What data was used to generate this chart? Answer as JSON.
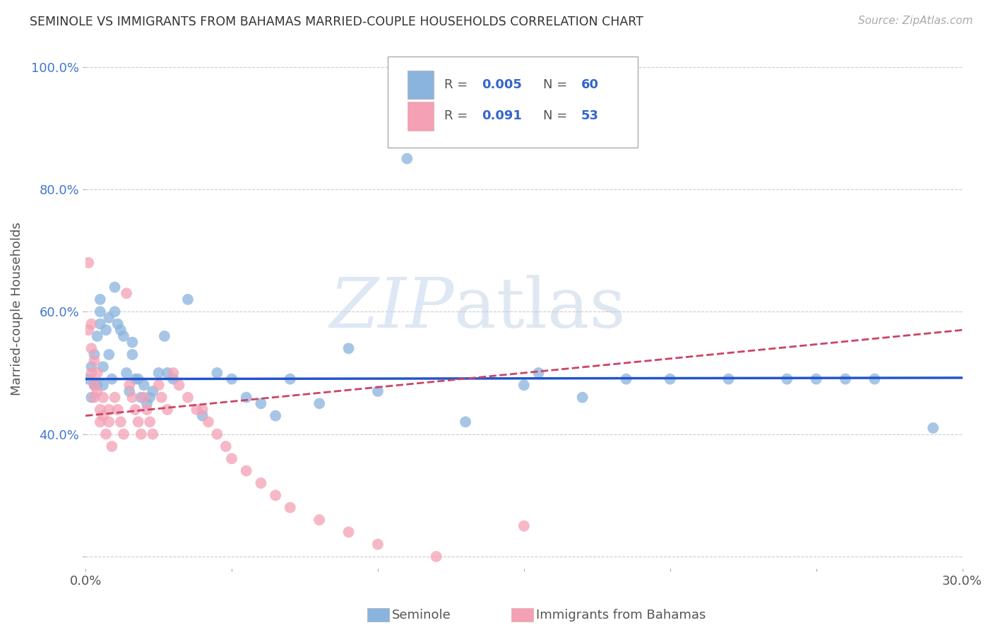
{
  "title": "SEMINOLE VS IMMIGRANTS FROM BAHAMAS MARRIED-COUPLE HOUSEHOLDS CORRELATION CHART",
  "source": "Source: ZipAtlas.com",
  "ylabel": "Married-couple Households",
  "xlabel": "",
  "xlim": [
    0.0,
    0.3
  ],
  "ylim": [
    0.18,
    1.03
  ],
  "xticks": [
    0.0,
    0.05,
    0.1,
    0.15,
    0.2,
    0.25,
    0.3
  ],
  "xticklabels": [
    "0.0%",
    "",
    "",
    "",
    "",
    "",
    "30.0%"
  ],
  "yticks": [
    0.2,
    0.4,
    0.6,
    0.8,
    1.0
  ],
  "yticklabels": [
    "",
    "40.0%",
    "60.0%",
    "80.0%",
    "100.0%"
  ],
  "grid_color": "#cccccc",
  "background_color": "#ffffff",
  "seminole_color": "#8ab4de",
  "bahamas_color": "#f4a0b5",
  "seminole_line_color": "#2255cc",
  "bahamas_line_color": "#cc4466",
  "label1": "Seminole",
  "label2": "Immigrants from Bahamas",
  "watermark_zip": "ZIP",
  "watermark_atlas": "atlas",
  "seminole_x": [
    0.001,
    0.002,
    0.002,
    0.003,
    0.003,
    0.004,
    0.004,
    0.005,
    0.005,
    0.005,
    0.006,
    0.006,
    0.007,
    0.008,
    0.008,
    0.009,
    0.01,
    0.01,
    0.011,
    0.012,
    0.013,
    0.014,
    0.015,
    0.016,
    0.016,
    0.017,
    0.018,
    0.019,
    0.02,
    0.021,
    0.022,
    0.023,
    0.025,
    0.027,
    0.028,
    0.03,
    0.035,
    0.04,
    0.045,
    0.05,
    0.055,
    0.06,
    0.065,
    0.07,
    0.08,
    0.09,
    0.1,
    0.11,
    0.13,
    0.15,
    0.155,
    0.17,
    0.185,
    0.2,
    0.22,
    0.24,
    0.25,
    0.26,
    0.27,
    0.29
  ],
  "seminole_y": [
    0.49,
    0.51,
    0.46,
    0.53,
    0.48,
    0.56,
    0.48,
    0.62,
    0.6,
    0.58,
    0.51,
    0.48,
    0.57,
    0.59,
    0.53,
    0.49,
    0.64,
    0.6,
    0.58,
    0.57,
    0.56,
    0.5,
    0.47,
    0.55,
    0.53,
    0.49,
    0.49,
    0.46,
    0.48,
    0.45,
    0.46,
    0.47,
    0.5,
    0.56,
    0.5,
    0.49,
    0.62,
    0.43,
    0.5,
    0.49,
    0.46,
    0.45,
    0.43,
    0.49,
    0.45,
    0.54,
    0.47,
    0.85,
    0.42,
    0.48,
    0.5,
    0.46,
    0.49,
    0.49,
    0.49,
    0.49,
    0.49,
    0.49,
    0.49,
    0.41
  ],
  "bahamas_x": [
    0.001,
    0.001,
    0.002,
    0.002,
    0.002,
    0.003,
    0.003,
    0.003,
    0.004,
    0.004,
    0.005,
    0.005,
    0.006,
    0.006,
    0.007,
    0.008,
    0.008,
    0.009,
    0.01,
    0.011,
    0.012,
    0.013,
    0.014,
    0.015,
    0.016,
    0.017,
    0.018,
    0.019,
    0.02,
    0.021,
    0.022,
    0.023,
    0.025,
    0.026,
    0.028,
    0.03,
    0.032,
    0.035,
    0.038,
    0.04,
    0.042,
    0.045,
    0.048,
    0.05,
    0.055,
    0.06,
    0.065,
    0.07,
    0.08,
    0.09,
    0.1,
    0.12,
    0.15
  ],
  "bahamas_y": [
    0.68,
    0.57,
    0.58,
    0.54,
    0.5,
    0.52,
    0.48,
    0.46,
    0.5,
    0.47,
    0.44,
    0.42,
    0.46,
    0.43,
    0.4,
    0.44,
    0.42,
    0.38,
    0.46,
    0.44,
    0.42,
    0.4,
    0.63,
    0.48,
    0.46,
    0.44,
    0.42,
    0.4,
    0.46,
    0.44,
    0.42,
    0.4,
    0.48,
    0.46,
    0.44,
    0.5,
    0.48,
    0.46,
    0.44,
    0.44,
    0.42,
    0.4,
    0.38,
    0.36,
    0.34,
    0.32,
    0.3,
    0.28,
    0.26,
    0.24,
    0.22,
    0.2,
    0.25
  ],
  "seminole_trend": [
    0.0,
    0.3,
    0.49,
    0.492
  ],
  "bahamas_trend": [
    0.0,
    0.3,
    0.43,
    0.57
  ]
}
